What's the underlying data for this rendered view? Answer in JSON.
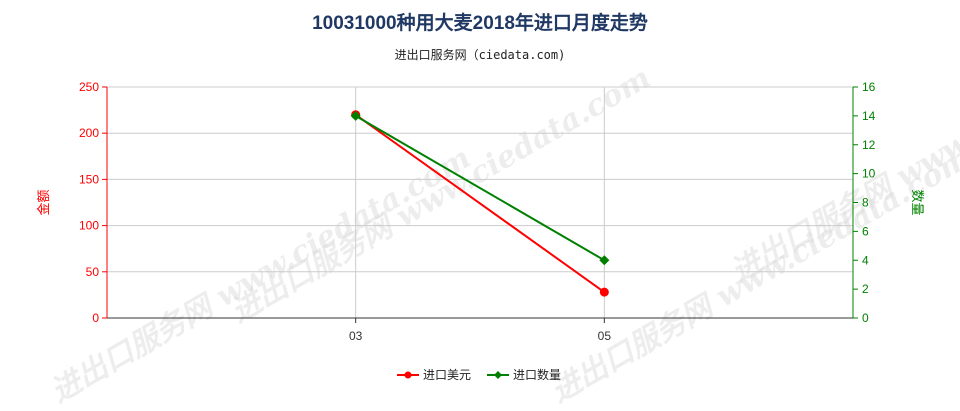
{
  "title": "10031000种用大麦2018年进口月度走势",
  "subtitle": "进出口服务网（ciedata.com)",
  "watermark": "进出口服务网 www.ciedata.com",
  "chart_data": {
    "type": "line",
    "categories": [
      "03",
      "05"
    ],
    "y_left": {
      "label": "金额",
      "ylim": [
        0,
        250
      ],
      "ticks": [
        0,
        50,
        100,
        150,
        200,
        250
      ],
      "color": "#ff0000"
    },
    "y_right": {
      "label": "数量",
      "ylim": [
        0,
        16
      ],
      "ticks": [
        0,
        2,
        4,
        6,
        8,
        10,
        12,
        14,
        16
      ],
      "color": "#008000"
    },
    "series": [
      {
        "name": "进口美元",
        "axis": "left",
        "color": "#ff0000",
        "marker": "circle",
        "values": [
          220,
          28
        ]
      },
      {
        "name": "进口数量",
        "axis": "right",
        "color": "#008000",
        "marker": "diamond",
        "values": [
          14,
          4
        ]
      }
    ],
    "grid": true,
    "legend_position": "bottom"
  }
}
